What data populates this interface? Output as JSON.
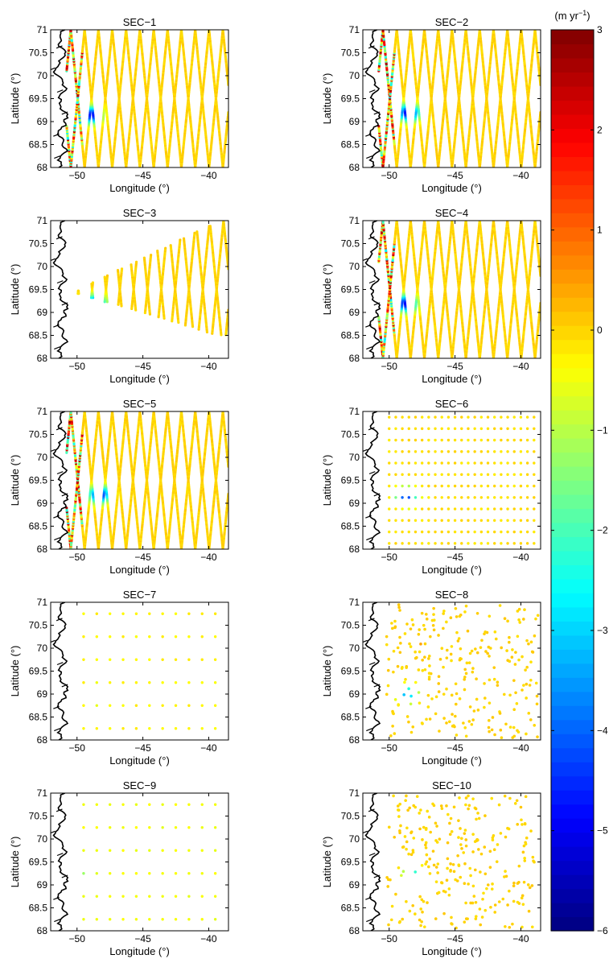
{
  "figure": {
    "colorbar": {
      "unit_label": "(m yr",
      "unit_superscript": "−1",
      "unit_close": ")",
      "min": -6,
      "max": 3,
      "ticks": [
        {
          "value": 3,
          "label": "3"
        },
        {
          "value": 2,
          "label": "2"
        },
        {
          "value": 1,
          "label": "1"
        },
        {
          "value": 0,
          "label": "0"
        },
        {
          "value": -1,
          "label": "−1"
        },
        {
          "value": -2,
          "label": "−2"
        },
        {
          "value": -3,
          "label": "−3"
        },
        {
          "value": -4,
          "label": "−4"
        },
        {
          "value": -5,
          "label": "−5"
        },
        {
          "value": -6,
          "label": "−6"
        }
      ],
      "colormap": "jet",
      "steps": 64
    },
    "axes_common": {
      "xlabel": "Longitude (°)",
      "ylabel": "Latitude (°)",
      "xlim": [
        -52,
        -38.5
      ],
      "ylim": [
        68,
        71
      ],
      "xticks": [
        {
          "value": -50,
          "label": "−50"
        },
        {
          "value": -45,
          "label": "−45"
        },
        {
          "value": -40,
          "label": "−40"
        }
      ],
      "yticks": [
        {
          "value": 68,
          "label": "68"
        },
        {
          "value": 68.5,
          "label": "68.5"
        },
        {
          "value": 69,
          "label": "69"
        },
        {
          "value": 69.5,
          "label": "69.5"
        },
        {
          "value": 70,
          "label": "70"
        },
        {
          "value": 70.5,
          "label": "70.5"
        },
        {
          "value": 71,
          "label": "71"
        }
      ],
      "coastline_color": "#000000"
    }
  },
  "chart_data": [
    {
      "type": "scatter",
      "title": "SEC−1",
      "pattern": "tracks",
      "track_extent": "full",
      "anomaly_lat": 69.15,
      "anomaly_lon": -48.9,
      "anomaly_min": -4.8,
      "coastal_band": true,
      "background_value": 0.0
    },
    {
      "type": "scatter",
      "title": "SEC−2",
      "pattern": "tracks",
      "track_extent": "full",
      "anomaly_lat": 69.2,
      "anomaly_lon": -48.5,
      "anomaly_min": -5.5,
      "coastal_band": true,
      "background_value": 0.0
    },
    {
      "type": "scatter",
      "title": "SEC−3",
      "pattern": "tracks",
      "track_extent": "wedge",
      "anomaly_lat": 69.2,
      "anomaly_lon": -48.6,
      "anomaly_min": -4.8,
      "coastal_band": false,
      "background_value": 0.0
    },
    {
      "type": "scatter",
      "title": "SEC−4",
      "pattern": "tracks",
      "track_extent": "full",
      "anomaly_lat": 69.2,
      "anomaly_lon": -48.7,
      "anomaly_min": -5.0,
      "coastal_band": true,
      "background_value": 0.0
    },
    {
      "type": "scatter",
      "title": "SEC−5",
      "pattern": "tracks",
      "track_extent": "full",
      "anomaly_lat": 69.2,
      "anomaly_lon": -48.3,
      "anomaly_min": -5.0,
      "coastal_band": true,
      "background_value": 0.0
    },
    {
      "type": "scatter",
      "title": "SEC−6",
      "pattern": "grid",
      "grid_dlon": 0.5,
      "grid_dlat": 0.25,
      "anomaly_lat": 69.15,
      "anomaly_lon": -48.7,
      "anomaly_min": -4.5,
      "background_value": -0.1
    },
    {
      "type": "scatter",
      "title": "SEC−7",
      "pattern": "grid",
      "grid_dlon": 1.0,
      "grid_dlat": 0.5,
      "anomaly_lat": 69.0,
      "anomaly_lon": -48.5,
      "anomaly_min": -1.8,
      "background_value": -0.3
    },
    {
      "type": "scatter",
      "title": "SEC−8",
      "pattern": "random",
      "anomaly_lat": 69.0,
      "anomaly_lon": -48.6,
      "anomaly_min": -3.5,
      "background_value": 0.0,
      "hotspot_lat": 70.15,
      "hotspot_lon": -47.7,
      "hotspot_value": 2.3
    },
    {
      "type": "scatter",
      "title": "SEC−9",
      "pattern": "grid",
      "grid_dlon": 1.0,
      "grid_dlat": 0.5,
      "anomaly_lat": 69.25,
      "anomaly_lon": -49.5,
      "anomaly_min": -0.8,
      "background_value": -0.5
    },
    {
      "type": "scatter",
      "title": "SEC−10",
      "pattern": "random",
      "anomaly_lat": 69.2,
      "anomaly_lon": -48.2,
      "anomaly_min": -3.0,
      "background_value": 0.0
    }
  ]
}
